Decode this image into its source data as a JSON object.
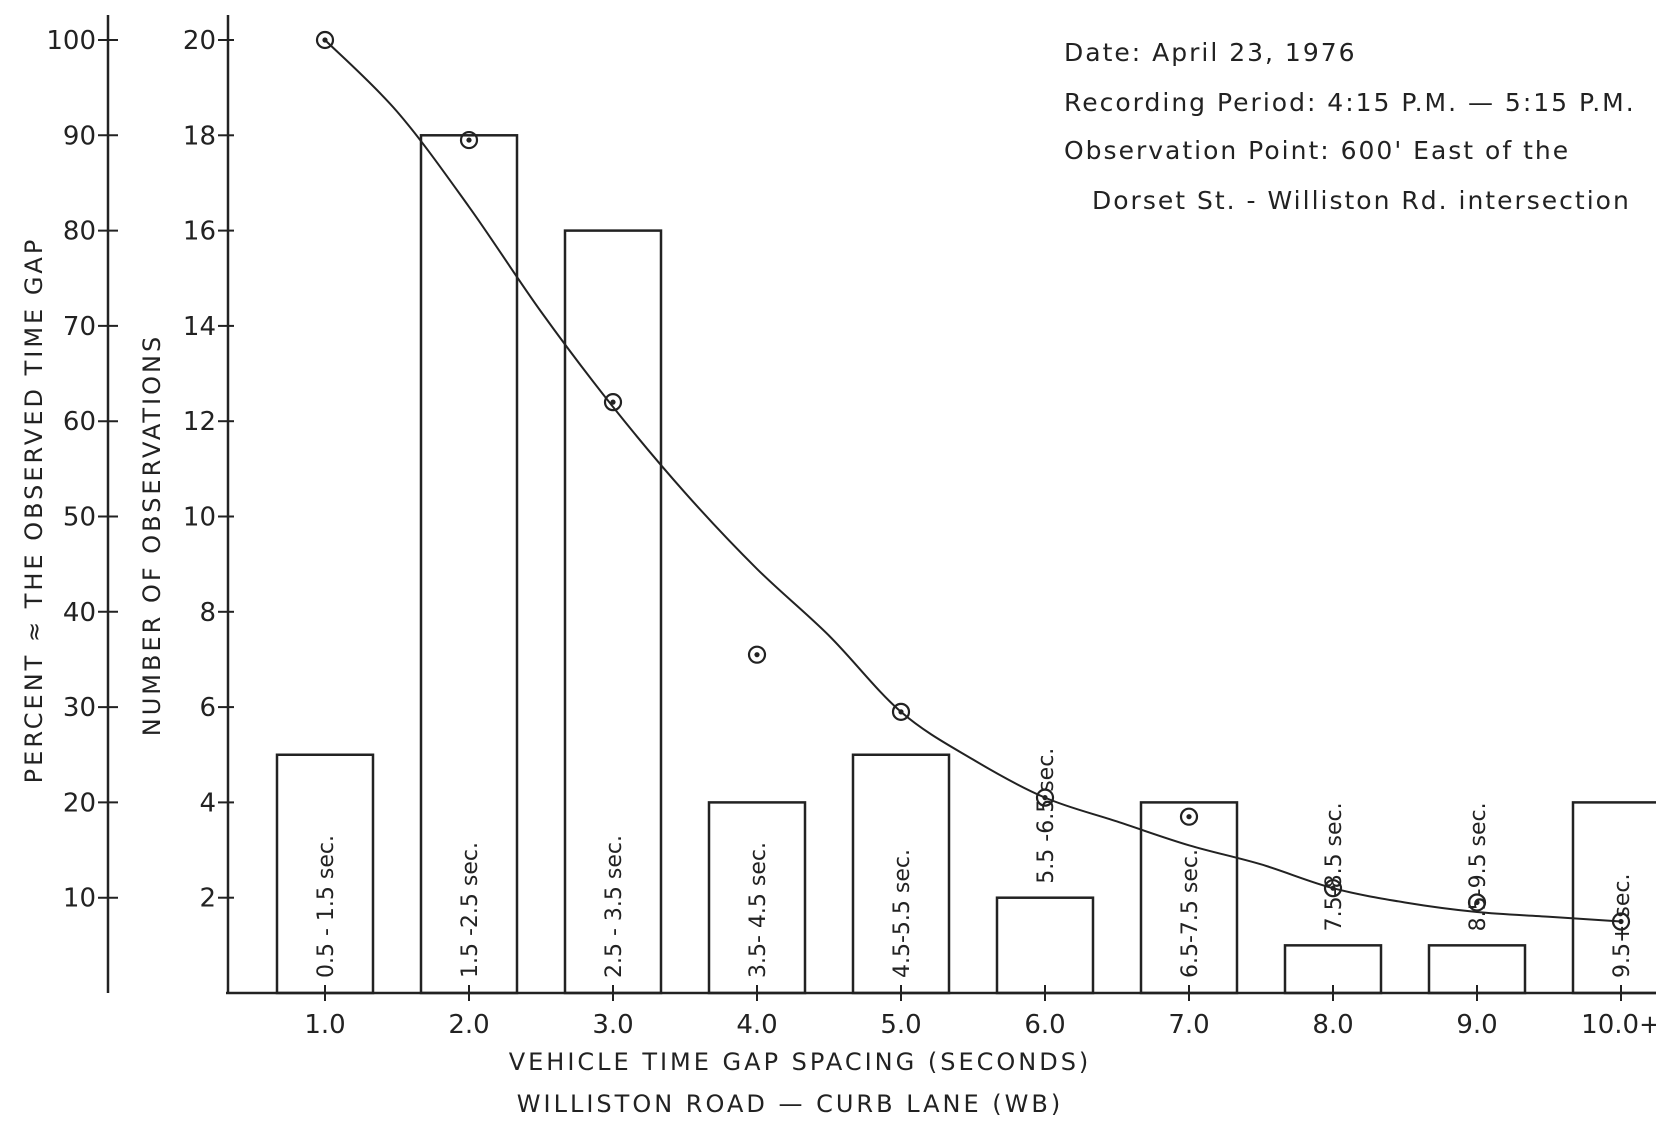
{
  "chart_data": {
    "type": "bar",
    "x_ticks": [
      "1.0",
      "2.0",
      "3.0",
      "4.0",
      "5.0",
      "6.0",
      "7.0",
      "8.0",
      "9.0",
      "10.0+"
    ],
    "x_range": [
      0.25,
      10.2
    ],
    "bars": [
      {
        "center": 1.0,
        "value": 5,
        "label": "0.5 - 1.5 sec."
      },
      {
        "center": 2.0,
        "value": 18,
        "label": "1.5 -2.5 sec."
      },
      {
        "center": 3.0,
        "value": 16,
        "label": "2.5 - 3.5 sec."
      },
      {
        "center": 4.0,
        "value": 4,
        "label": "3.5- 4.5 sec."
      },
      {
        "center": 5.0,
        "value": 5,
        "label": "4.5-5.5 sec."
      },
      {
        "center": 6.0,
        "value": 2,
        "label": "5.5 -6.5 sec."
      },
      {
        "center": 7.0,
        "value": 4,
        "label": "6.5-7.5 sec."
      },
      {
        "center": 8.0,
        "value": 1,
        "label": "7.5-8.5 sec."
      },
      {
        "center": 9.0,
        "value": 1,
        "label": "8.5-9.5 sec."
      },
      {
        "center": 10.0,
        "value": 4,
        "label": "9.5+ sec."
      }
    ],
    "points": [
      {
        "x": 1.0,
        "y": 20
      },
      {
        "x": 2.0,
        "y": 17.9
      },
      {
        "x": 3.0,
        "y": 12.4
      },
      {
        "x": 4.0,
        "y": 7.1
      },
      {
        "x": 5.0,
        "y": 5.9
      },
      {
        "x": 6.0,
        "y": 4.1
      },
      {
        "x": 7.0,
        "y": 3.7
      },
      {
        "x": 8.0,
        "y": 2.2
      },
      {
        "x": 9.0,
        "y": 1.9
      },
      {
        "x": 10.0,
        "y": 1.5
      }
    ],
    "curve": [
      {
        "x": 1.0,
        "y": 20.0
      },
      {
        "x": 1.5,
        "y": 18.5
      },
      {
        "x": 2.0,
        "y": 16.5
      },
      {
        "x": 2.5,
        "y": 14.3
      },
      {
        "x": 3.0,
        "y": 12.3
      },
      {
        "x": 3.5,
        "y": 10.5
      },
      {
        "x": 4.0,
        "y": 8.9
      },
      {
        "x": 4.5,
        "y": 7.5
      },
      {
        "x": 5.0,
        "y": 5.9
      },
      {
        "x": 5.5,
        "y": 4.9
      },
      {
        "x": 6.0,
        "y": 4.1
      },
      {
        "x": 6.5,
        "y": 3.6
      },
      {
        "x": 7.0,
        "y": 3.1
      },
      {
        "x": 7.5,
        "y": 2.7
      },
      {
        "x": 8.0,
        "y": 2.2
      },
      {
        "x": 8.5,
        "y": 1.9
      },
      {
        "x": 9.0,
        "y": 1.7
      },
      {
        "x": 9.5,
        "y": 1.6
      },
      {
        "x": 10.0,
        "y": 1.5
      }
    ],
    "y_left_ticks": [
      "100",
      "90",
      "80",
      "70",
      "60",
      "50",
      "40",
      "30",
      "20",
      "10"
    ],
    "y_left_values": [
      100,
      90,
      80,
      70,
      60,
      50,
      40,
      30,
      20,
      10
    ],
    "y_right_ticks": [
      "20",
      "18",
      "16",
      "14",
      "12",
      "10",
      "8",
      "6",
      "4",
      "2"
    ],
    "y_right_values": [
      20,
      18,
      16,
      14,
      12,
      10,
      8,
      6,
      4,
      2
    ],
    "ylim": [
      0,
      20
    ],
    "ylabel_left": "PERCENT ≈ THE OBSERVED TIME GAP",
    "ylabel_right": "NUMBER OF OBSERVATIONS",
    "xlabel": "VEHICLE TIME GAP SPACING (SECONDS)",
    "subtitle": "WILLISTON ROAD — CURB LANE (WB)",
    "grid": false
  },
  "notes": {
    "date": "Date: April 23, 1976",
    "period": "Recording Period: 4:15 P.M. — 5:15 P.M.",
    "point": "Observation Point: 600' East of the",
    "location": "Dorset St. - Williston Rd. intersection"
  }
}
